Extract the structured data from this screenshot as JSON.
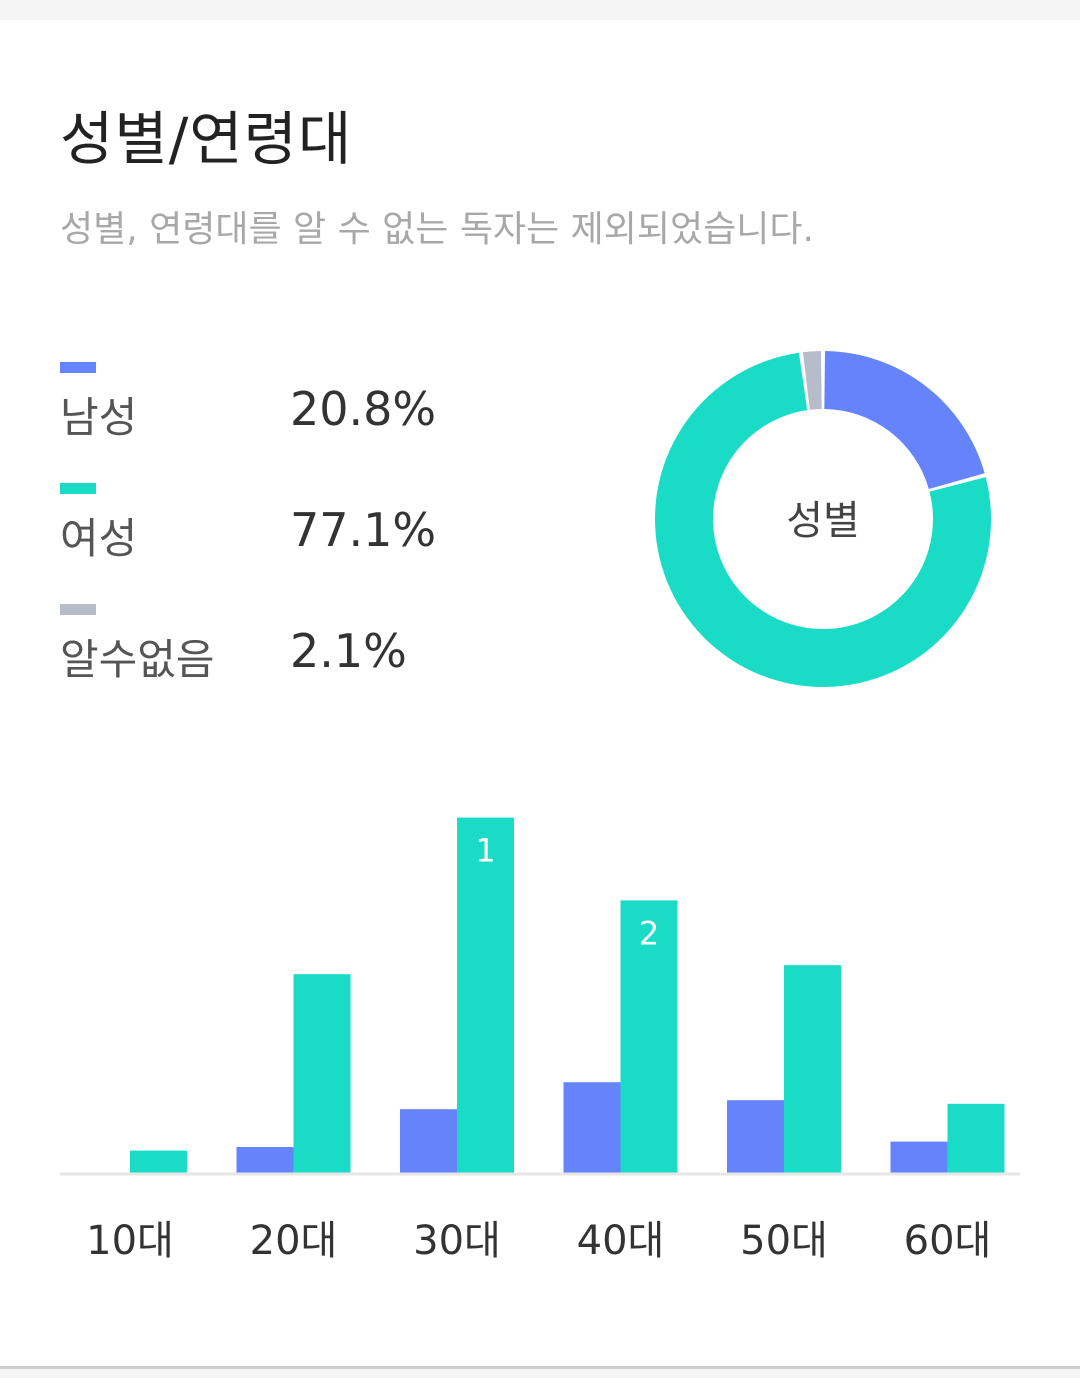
{
  "section": {
    "title": "성별/연령대",
    "subtitle": "성별, 연령대를 알 수 없는 독자는 제외되었습니다."
  },
  "colors": {
    "male": "#6583fb",
    "female": "#1adcc6",
    "unknown": "#b6bcc9",
    "baseline": "#e6e6e6"
  },
  "legend": [
    {
      "label": "남성",
      "value": "20.8%"
    },
    {
      "label": "여성",
      "value": "77.1%"
    },
    {
      "label": "알수없음",
      "value": "2.1%"
    }
  ],
  "chart_data": [
    {
      "type": "pie",
      "center_label": "성별",
      "labels": [
        "남성",
        "여성",
        "알수없음"
      ],
      "values": [
        20.8,
        77.1,
        2.1
      ]
    },
    {
      "type": "bar",
      "categories": [
        "10대",
        "20대",
        "30대",
        "40대",
        "50대",
        "60대"
      ],
      "series": [
        {
          "name": "남성",
          "values": [
            0,
            7.5,
            18,
            25.5,
            20.5,
            9
          ]
        },
        {
          "name": "여성",
          "values": [
            6.5,
            55.5,
            99,
            76,
            58,
            19.5
          ]
        }
      ],
      "ylim": [
        0,
        100
      ],
      "annotations": [
        {
          "category": "30대",
          "series": "여성",
          "text": "1"
        },
        {
          "category": "40대",
          "series": "여성",
          "text": "2"
        }
      ],
      "grid": false
    }
  ]
}
